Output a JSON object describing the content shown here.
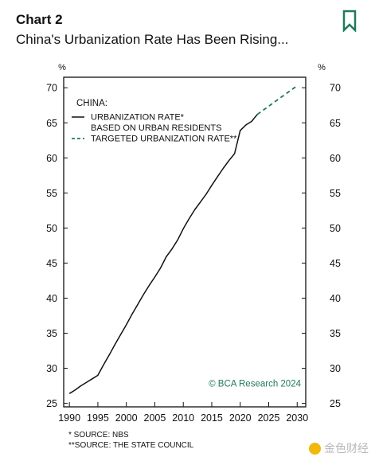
{
  "header": {
    "chart_label": "Chart 2",
    "title": "China's Urbanization Rate Has Been Rising..."
  },
  "chart_data": {
    "type": "line",
    "x_ticks": [
      "1990",
      "1995",
      "2000",
      "2005",
      "2010",
      "2015",
      "2020",
      "2025",
      "2030"
    ],
    "y_ticks": [
      "25",
      "30",
      "35",
      "40",
      "45",
      "50",
      "55",
      "60",
      "65",
      "70"
    ],
    "xlim": [
      1989,
      2031.5
    ],
    "ylim": [
      24.5,
      71.5
    ],
    "unit_left": "%",
    "unit_right": "%",
    "legend_title": "CHINA:",
    "series": [
      {
        "name": "URBANIZATION RATE*",
        "name_line2": "BASED ON URBAN RESIDENTS",
        "style": "solid",
        "color": "#111111",
        "points": [
          [
            1990,
            26.4
          ],
          [
            1991,
            26.9
          ],
          [
            1992,
            27.5
          ],
          [
            1993,
            28.0
          ],
          [
            1994,
            28.5
          ],
          [
            1995,
            29.0
          ],
          [
            1996,
            30.5
          ],
          [
            1997,
            31.9
          ],
          [
            1998,
            33.4
          ],
          [
            1999,
            34.8
          ],
          [
            2000,
            36.2
          ],
          [
            2001,
            37.7
          ],
          [
            2002,
            39.1
          ],
          [
            2003,
            40.5
          ],
          [
            2004,
            41.8
          ],
          [
            2005,
            43.0
          ],
          [
            2006,
            44.3
          ],
          [
            2007,
            45.9
          ],
          [
            2008,
            47.0
          ],
          [
            2009,
            48.3
          ],
          [
            2010,
            49.9
          ],
          [
            2011,
            51.3
          ],
          [
            2012,
            52.6
          ],
          [
            2013,
            53.7
          ],
          [
            2014,
            54.8
          ],
          [
            2015,
            56.1
          ],
          [
            2016,
            57.3
          ],
          [
            2017,
            58.5
          ],
          [
            2018,
            59.6
          ],
          [
            2019,
            60.6
          ],
          [
            2020,
            63.9
          ],
          [
            2021,
            64.7
          ],
          [
            2022,
            65.2
          ],
          [
            2023,
            66.2
          ]
        ]
      },
      {
        "name": "TARGETED URBANIZATION RATE**",
        "style": "dashed",
        "color": "#1f7a5a",
        "points": [
          [
            2023,
            66.2
          ],
          [
            2030,
            70.3
          ]
        ]
      }
    ],
    "credit": "© BCA Research 2024",
    "footnotes": [
      "* SOURCE: NBS",
      "**SOURCE: THE STATE COUNCIL"
    ]
  },
  "watermark": "金色财经",
  "colors": {
    "accent": "#1f7a5a",
    "line": "#111111"
  }
}
